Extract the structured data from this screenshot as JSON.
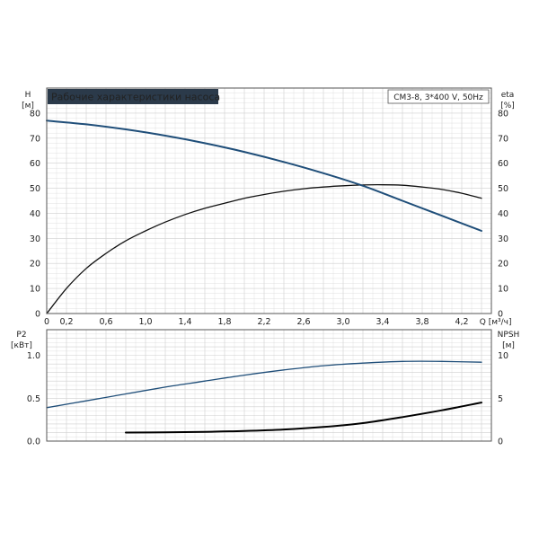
{
  "colors": {
    "head_curve": "#1f4e79",
    "efficiency_curve": "#111111",
    "p2_curve": "#1f4e79",
    "npsh_curve": "#000000",
    "grid": "#cfcfcf",
    "frame": "#555555",
    "title_bg": "#2b3a4a",
    "title_fg": "#ffffff"
  },
  "chart_data": [
    {
      "type": "line",
      "title": "Рабочие характеристики насоса",
      "subtitle": "CM3-8, 3*400 V, 50Hz",
      "xlabel": "Q [м³/ч]",
      "ylabel_left": [
        "H",
        "[м]"
      ],
      "ylabel_right": [
        "eta",
        "[%]"
      ],
      "xlim": [
        0,
        4.5
      ],
      "ylim_left": [
        0,
        90
      ],
      "ylim_right": [
        0,
        90
      ],
      "grid": true,
      "x_ticks": [
        "0",
        "0,2",
        "0,6",
        "1,0",
        "1,4",
        "1,8",
        "2,2",
        "2,6",
        "3,0",
        "3,4",
        "3,8",
        "4,2"
      ],
      "y_ticks_left": [
        "0",
        "10",
        "20",
        "30",
        "40",
        "50",
        "60",
        "70",
        "80"
      ],
      "y_ticks_right": [
        "0",
        "10",
        "20",
        "30",
        "40",
        "50",
        "60",
        "70",
        "80"
      ],
      "series": [
        {
          "axis": "left",
          "x": [
            0,
            0.4,
            0.8,
            1.2,
            1.6,
            2.0,
            2.4,
            2.8,
            3.2,
            3.6,
            4.0,
            4.4
          ],
          "y": [
            77,
            75.5,
            73.5,
            71,
            68,
            64.5,
            60.5,
            56,
            51,
            45,
            39,
            33
          ]
        },
        {
          "axis": "right",
          "x": [
            0,
            0.2,
            0.4,
            0.6,
            0.8,
            1.0,
            1.2,
            1.4,
            1.6,
            1.8,
            2.0,
            2.2,
            2.4,
            2.6,
            2.8,
            3.0,
            3.2,
            3.4,
            3.6,
            3.8,
            4.0,
            4.2,
            4.4
          ],
          "y": [
            0,
            10,
            18,
            24,
            29,
            33,
            36.5,
            39.5,
            42,
            44,
            46,
            47.5,
            48.8,
            49.8,
            50.5,
            51,
            51.3,
            51.4,
            51.2,
            50.5,
            49.5,
            48,
            46
          ]
        }
      ]
    },
    {
      "type": "line",
      "ylabel_left": [
        "P2",
        "[кВт]"
      ],
      "ylabel_right": [
        "NPSH",
        "[м]"
      ],
      "xlim": [
        0,
        4.5
      ],
      "ylim_left": [
        0,
        1.3
      ],
      "ylim_right": [
        0,
        13
      ],
      "grid": true,
      "y_ticks_left": [
        "0.0",
        "0.5",
        "1.0"
      ],
      "y_ticks_right": [
        "0",
        "5",
        "10"
      ],
      "series": [
        {
          "axis": "left",
          "x": [
            0,
            0.4,
            0.8,
            1.2,
            1.6,
            2.0,
            2.4,
            2.8,
            3.2,
            3.6,
            4.0,
            4.4
          ],
          "y": [
            0.39,
            0.47,
            0.55,
            0.63,
            0.7,
            0.77,
            0.83,
            0.88,
            0.91,
            0.93,
            0.93,
            0.92
          ]
        },
        {
          "axis": "right",
          "x": [
            0.8,
            1.2,
            1.6,
            2.0,
            2.4,
            2.8,
            3.2,
            3.6,
            4.0,
            4.4
          ],
          "y": [
            1.0,
            1.02,
            1.08,
            1.18,
            1.35,
            1.65,
            2.1,
            2.8,
            3.6,
            4.5
          ]
        }
      ]
    }
  ]
}
